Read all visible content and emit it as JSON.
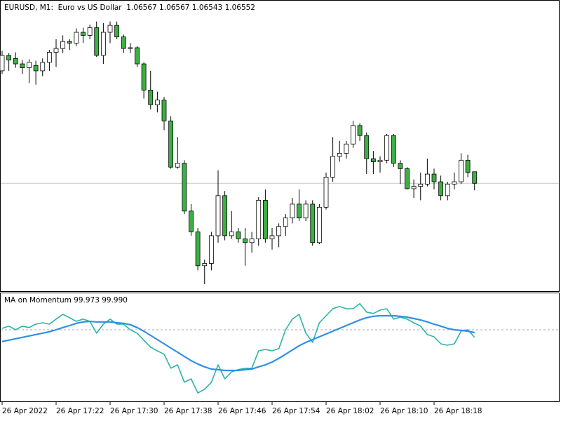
{
  "chart_data": [
    {
      "type": "candlestick",
      "title": "EURUSD, M1:  Euro vs US Dollar  1.06567 1.06567 1.06543 1.06552",
      "open": [
        1.06698,
        1.06718,
        1.06714,
        1.06707,
        1.06702,
        1.06705,
        1.06698,
        1.06709,
        1.06722,
        1.06727,
        1.06736,
        1.06734,
        1.06748,
        1.06744,
        1.06754,
        1.06718,
        1.06748,
        1.06757,
        1.06742,
        1.06727,
        1.06728,
        1.06707,
        1.06673,
        1.06654,
        1.0666,
        1.06633,
        1.06573,
        1.06578,
        1.06516,
        1.06489,
        1.06445,
        1.06448,
        1.06484,
        1.06536,
        1.06484,
        1.06489,
        1.0648,
        1.06475,
        1.0648,
        1.0653,
        1.0648,
        1.06484,
        1.06496,
        1.06507,
        1.06525,
        1.06507,
        1.06525,
        1.06475,
        1.06521,
        1.0656,
        1.06587,
        1.06591,
        1.06603,
        1.06627,
        1.06614,
        1.06584,
        1.0658,
        1.06582,
        1.06614,
        1.06578,
        1.06571,
        1.06545,
        1.06548,
        1.06551,
        1.06564,
        1.06554,
        1.06536,
        1.06551,
        1.06554,
        1.06582,
        1.06567
      ],
      "high": [
        1.06724,
        1.06721,
        1.06722,
        1.06712,
        1.06713,
        1.06711,
        1.06714,
        1.06725,
        1.06739,
        1.06744,
        1.06739,
        1.06753,
        1.06754,
        1.06758,
        1.06762,
        1.0676,
        1.06762,
        1.06762,
        1.06745,
        1.06734,
        1.0673,
        1.06709,
        1.06698,
        1.06671,
        1.06664,
        1.06639,
        1.06612,
        1.06582,
        1.06525,
        1.06494,
        1.06453,
        1.06489,
        1.06569,
        1.06542,
        1.06516,
        1.06494,
        1.06494,
        1.06489,
        1.06534,
        1.06544,
        1.06494,
        1.065,
        1.06512,
        1.06533,
        1.06544,
        1.0653,
        1.0653,
        1.06525,
        1.06566,
        1.06612,
        1.06607,
        1.06607,
        1.06633,
        1.0663,
        1.06618,
        1.06594,
        1.06587,
        1.06616,
        1.06616,
        1.06582,
        1.06573,
        1.06557,
        1.06566,
        1.06584,
        1.06571,
        1.06562,
        1.06554,
        1.06566,
        1.06591,
        1.06589,
        1.06567
      ],
      "low": [
        1.06694,
        1.06698,
        1.06702,
        1.06694,
        1.06682,
        1.0668,
        1.06691,
        1.06698,
        1.06703,
        1.06721,
        1.06725,
        1.0673,
        1.06734,
        1.06739,
        1.06716,
        1.06707,
        1.06734,
        1.06739,
        1.06721,
        1.06721,
        1.06703,
        1.06662,
        1.06648,
        1.06644,
        1.06621,
        1.06571,
        1.06571,
        1.06512,
        1.06484,
        1.06439,
        1.06421,
        1.06439,
        1.06475,
        1.06478,
        1.0648,
        1.06475,
        1.06445,
        1.06462,
        1.06471,
        1.06475,
        1.06466,
        1.06469,
        1.06484,
        1.065,
        1.06503,
        1.06503,
        1.06471,
        1.06473,
        1.06518,
        1.06554,
        1.0658,
        1.06584,
        1.06598,
        1.06607,
        1.06564,
        1.06564,
        1.06566,
        1.06578,
        1.06573,
        1.06551,
        1.06544,
        1.06533,
        1.0653,
        1.06548,
        1.06544,
        1.0653,
        1.0653,
        1.06544,
        1.06551,
        1.0656,
        1.06543
      ],
      "close": [
        1.06718,
        1.06712,
        1.06707,
        1.06702,
        1.06709,
        1.06698,
        1.06709,
        1.06722,
        1.06727,
        1.06736,
        1.06734,
        1.06748,
        1.06744,
        1.06754,
        1.06718,
        1.06748,
        1.06757,
        1.06742,
        1.06727,
        1.06728,
        1.06707,
        1.06673,
        1.06654,
        1.0666,
        1.06633,
        1.06573,
        1.06578,
        1.06516,
        1.06489,
        1.06445,
        1.06448,
        1.06484,
        1.06536,
        1.06484,
        1.06489,
        1.0648,
        1.06475,
        1.0648,
        1.0653,
        1.0648,
        1.06484,
        1.06496,
        1.06507,
        1.06525,
        1.06507,
        1.06525,
        1.06475,
        1.06521,
        1.0656,
        1.06587,
        1.06591,
        1.06603,
        1.06627,
        1.06614,
        1.06584,
        1.0658,
        1.06582,
        1.06614,
        1.06578,
        1.06571,
        1.06545,
        1.06548,
        1.06551,
        1.06564,
        1.06554,
        1.06536,
        1.06551,
        1.06554,
        1.06582,
        1.06566,
        1.06552
      ],
      "up_color": "#ffffff",
      "down_color": "#3cb043",
      "ylim": [
        1.06412,
        1.06789
      ],
      "price_line": true
    },
    {
      "type": "line",
      "title": "MA on Momentum 99.973 99.990",
      "categories": [
        "26 Apr 2022",
        null,
        null,
        null,
        null,
        null,
        null,
        null,
        "26 Apr 17:22",
        null,
        null,
        null,
        null,
        null,
        null,
        null,
        "26 Apr 17:30",
        null,
        null,
        null,
        null,
        null,
        null,
        null,
        "26 Apr 17:38",
        null,
        null,
        null,
        null,
        null,
        null,
        null,
        "26 Apr 17:46",
        null,
        null,
        null,
        null,
        null,
        null,
        null,
        "26 Apr 17:54",
        null,
        null,
        null,
        null,
        null,
        null,
        null,
        "26 Apr 18:02",
        null,
        null,
        null,
        null,
        null,
        null,
        null,
        "26 Apr 18:10",
        null,
        null,
        null,
        null,
        null,
        null,
        null,
        "26 Apr 18:18",
        null,
        null,
        null,
        null,
        null,
        null
      ],
      "series": [
        {
          "color": "#2ab5a5",
          "values": [
            100.005,
            100.013,
            100,
            100.013,
            100.008,
            100.02,
            100.025,
            100.02,
            100.038,
            100.055,
            100.043,
            100.03,
            100.038,
            100.03,
            99.988,
            100.02,
            100.038,
            100.02,
            100.02,
            100,
            99.988,
            99.963,
            99.938,
            99.925,
            99.913,
            99.863,
            99.875,
            99.813,
            99.825,
            99.775,
            99.788,
            99.813,
            99.875,
            99.825,
            99.85,
            99.858,
            99.863,
            99.863,
            99.925,
            99.93,
            99.925,
            99.933,
            100,
            100.038,
            100.055,
            99.988,
            99.955,
            100.025,
            100.05,
            100.075,
            100.083,
            100.075,
            100.075,
            100.093,
            100.063,
            100.058,
            100.07,
            100.075,
            100.038,
            100.045,
            100.038,
            100.025,
            100.013,
            99.983,
            99.975,
            99.95,
            99.945,
            99.95,
            99.995,
            100,
            99.973
          ]
        },
        {
          "color": "#2f8fe6",
          "values": [
            99.958,
            99.963,
            99.968,
            99.973,
            99.978,
            99.983,
            99.988,
            99.993,
            100,
            100.008,
            100.015,
            100.023,
            100.028,
            100.03,
            100.028,
            100.028,
            100.028,
            100.025,
            100.023,
            100.018,
            100.008,
            99.995,
            99.98,
            99.965,
            99.95,
            99.935,
            99.92,
            99.905,
            99.89,
            99.878,
            99.868,
            99.86,
            99.858,
            99.855,
            99.855,
            99.855,
            99.858,
            99.86,
            99.868,
            99.875,
            99.885,
            99.898,
            99.913,
            99.928,
            99.943,
            99.955,
            99.965,
            99.975,
            99.985,
            99.995,
            100.005,
            100.015,
            100.025,
            100.035,
            100.043,
            100.048,
            100.05,
            100.05,
            100.05,
            100.048,
            100.045,
            100.04,
            100.035,
            100.028,
            100.02,
            100.013,
            100.005,
            100,
            99.998,
            99.995,
            99.99
          ]
        }
      ],
      "ylim": [
        99.745,
        100.125
      ],
      "level": 100
    }
  ]
}
